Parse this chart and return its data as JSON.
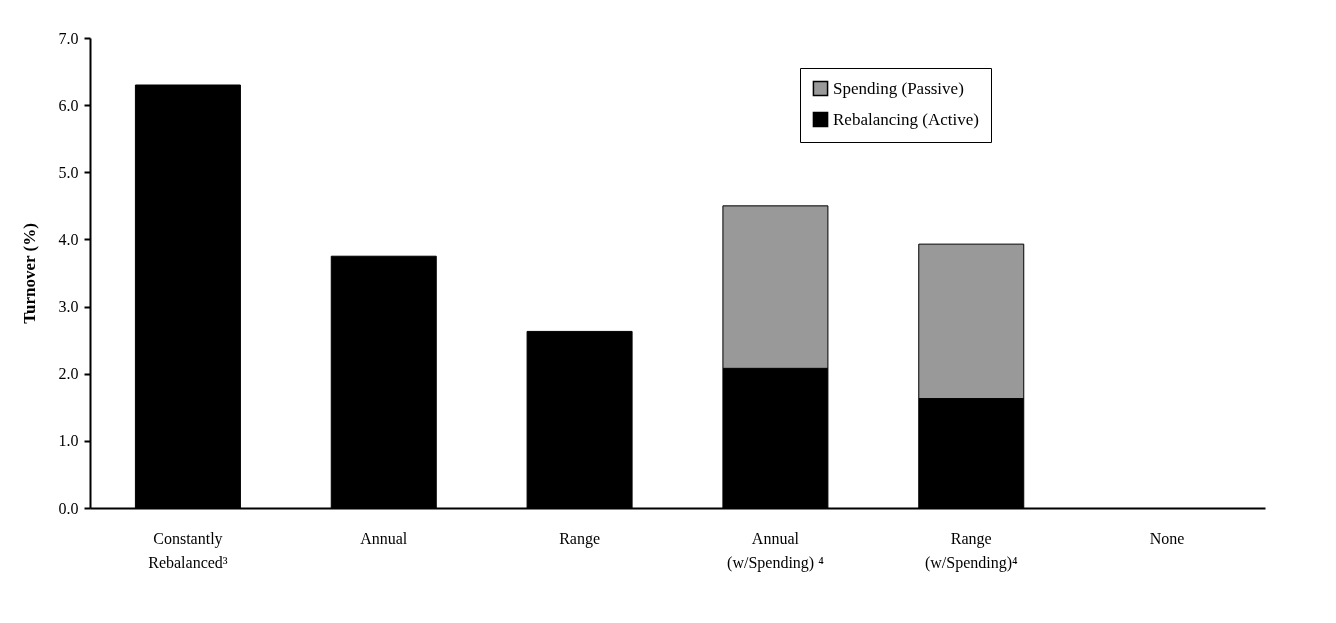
{
  "chart_data": {
    "type": "bar",
    "stacked": true,
    "ylabel": "Turnover (%)",
    "categories": [
      "Constantly\nRebalanced³",
      "Annual",
      "Range",
      "Annual\n(w/Spending) ⁴",
      "Range\n(w/Spending)⁴",
      "None"
    ],
    "series": [
      {
        "name": "Rebalancing (Active)",
        "color": "#000000",
        "values": [
          6.3,
          3.75,
          2.63,
          2.08,
          1.63,
          null
        ]
      },
      {
        "name": "Spending (Passive)",
        "color": "#999999",
        "values": [
          null,
          null,
          null,
          2.42,
          2.3,
          null
        ]
      }
    ],
    "ylim": [
      0,
      7
    ],
    "yticks": [
      {
        "value": 0,
        "label": "0.0"
      },
      {
        "value": 1,
        "label": "1.0"
      },
      {
        "value": 2,
        "label": "2.0"
      },
      {
        "value": 3,
        "label": "3.0"
      },
      {
        "value": 4,
        "label": "4.0"
      },
      {
        "value": 5,
        "label": "5.0"
      },
      {
        "value": 6,
        "label": "6.0"
      },
      {
        "value": 7,
        "label": "7.0"
      }
    ],
    "grid": false,
    "legend": "top right"
  }
}
